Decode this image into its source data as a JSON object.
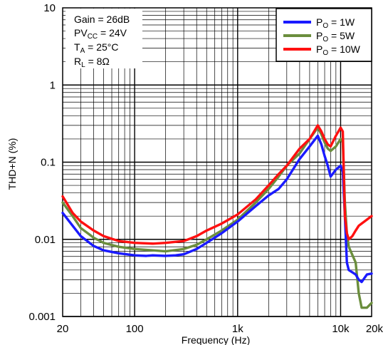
{
  "chart_data": {
    "type": "line",
    "xscale": "log",
    "yscale": "log",
    "xlim": [
      20,
      20000
    ],
    "ylim": [
      0.001,
      10
    ],
    "xlabel": "Frequency (Hz)",
    "ylabel": "THD+N (%)",
    "x_ticks": [
      {
        "value": 20,
        "label": "20"
      },
      {
        "value": 100,
        "label": "100"
      },
      {
        "value": 1000,
        "label": "1k"
      },
      {
        "value": 10000,
        "label": "10k"
      },
      {
        "value": 20000,
        "label": "20k"
      }
    ],
    "y_ticks": [
      {
        "value": 10,
        "label": "10"
      },
      {
        "value": 1,
        "label": "1"
      },
      {
        "value": 0.1,
        "label": "0.1"
      },
      {
        "value": 0.01,
        "label": "0.01"
      },
      {
        "value": 0.001,
        "label": "0.001"
      }
    ],
    "grid": true,
    "legend_position": "top-right",
    "annotation": {
      "gain": "Gain = 26dB",
      "pvcc_main": "PV",
      "pvcc_sub": "CC",
      "pvcc_value": " = 24V",
      "ta_main": "T",
      "ta_sub": "A",
      "ta_value": " = 25°C",
      "rl_main": "R",
      "rl_sub": "L",
      "rl_value": " = 8Ω"
    },
    "series": [
      {
        "name_main": "P",
        "name_sub": "O",
        "name_value": " = 1W",
        "color": "#1a1aff",
        "points": [
          [
            20,
            0.022
          ],
          [
            25,
            0.015
          ],
          [
            30,
            0.011
          ],
          [
            40,
            0.0082
          ],
          [
            50,
            0.0072
          ],
          [
            70,
            0.0066
          ],
          [
            100,
            0.0062
          ],
          [
            130,
            0.0061
          ],
          [
            150,
            0.0062
          ],
          [
            200,
            0.0061
          ],
          [
            250,
            0.0062
          ],
          [
            300,
            0.0064
          ],
          [
            400,
            0.0075
          ],
          [
            500,
            0.009
          ],
          [
            700,
            0.012
          ],
          [
            1000,
            0.017
          ],
          [
            1500,
            0.027
          ],
          [
            2000,
            0.037
          ],
          [
            2500,
            0.045
          ],
          [
            3000,
            0.06
          ],
          [
            4000,
            0.11
          ],
          [
            5000,
            0.16
          ],
          [
            6000,
            0.22
          ],
          [
            6500,
            0.17
          ],
          [
            7000,
            0.12
          ],
          [
            7500,
            0.09
          ],
          [
            8000,
            0.065
          ],
          [
            9000,
            0.08
          ],
          [
            10000,
            0.09
          ],
          [
            10500,
            0.075
          ],
          [
            11000,
            0.02
          ],
          [
            11500,
            0.005
          ],
          [
            12000,
            0.004
          ],
          [
            14000,
            0.0035
          ],
          [
            15000,
            0.003
          ],
          [
            16000,
            0.0028
          ],
          [
            18000,
            0.0035
          ],
          [
            20000,
            0.0036
          ]
        ]
      },
      {
        "name_main": "P",
        "name_sub": "O",
        "name_value": " = 5W",
        "color": "#6b8e3d",
        "points": [
          [
            20,
            0.03
          ],
          [
            25,
            0.02
          ],
          [
            30,
            0.014
          ],
          [
            40,
            0.0105
          ],
          [
            50,
            0.009
          ],
          [
            70,
            0.008
          ],
          [
            100,
            0.0075
          ],
          [
            150,
            0.0072
          ],
          [
            200,
            0.007
          ],
          [
            300,
            0.0075
          ],
          [
            400,
            0.0085
          ],
          [
            500,
            0.01
          ],
          [
            700,
            0.013
          ],
          [
            1000,
            0.018
          ],
          [
            1500,
            0.03
          ],
          [
            2000,
            0.045
          ],
          [
            2500,
            0.065
          ],
          [
            3000,
            0.09
          ],
          [
            4000,
            0.13
          ],
          [
            5000,
            0.2
          ],
          [
            6000,
            0.28
          ],
          [
            6500,
            0.23
          ],
          [
            7000,
            0.18
          ],
          [
            7500,
            0.15
          ],
          [
            8000,
            0.14
          ],
          [
            9000,
            0.16
          ],
          [
            10000,
            0.2
          ],
          [
            10500,
            0.18
          ],
          [
            11000,
            0.03
          ],
          [
            11500,
            0.012
          ],
          [
            12000,
            0.008
          ],
          [
            14000,
            0.005
          ],
          [
            15000,
            0.002
          ],
          [
            16000,
            0.0013
          ],
          [
            18000,
            0.0013
          ],
          [
            20000,
            0.0015
          ]
        ]
      },
      {
        "name_main": "P",
        "name_sub": "O",
        "name_value": " = 10W",
        "color": "#ff1010",
        "points": [
          [
            20,
            0.036
          ],
          [
            25,
            0.022
          ],
          [
            30,
            0.017
          ],
          [
            40,
            0.013
          ],
          [
            50,
            0.011
          ],
          [
            70,
            0.0095
          ],
          [
            100,
            0.009
          ],
          [
            150,
            0.0088
          ],
          [
            200,
            0.009
          ],
          [
            300,
            0.0095
          ],
          [
            400,
            0.011
          ],
          [
            500,
            0.013
          ],
          [
            700,
            0.016
          ],
          [
            1000,
            0.021
          ],
          [
            1500,
            0.033
          ],
          [
            2000,
            0.05
          ],
          [
            2500,
            0.07
          ],
          [
            3000,
            0.09
          ],
          [
            4000,
            0.15
          ],
          [
            5000,
            0.2
          ],
          [
            6000,
            0.3
          ],
          [
            6500,
            0.25
          ],
          [
            7000,
            0.2
          ],
          [
            7500,
            0.17
          ],
          [
            8000,
            0.16
          ],
          [
            9000,
            0.22
          ],
          [
            10000,
            0.28
          ],
          [
            10500,
            0.25
          ],
          [
            11000,
            0.02
          ],
          [
            11500,
            0.012
          ],
          [
            12000,
            0.01
          ],
          [
            13000,
            0.011
          ],
          [
            14000,
            0.013
          ],
          [
            15000,
            0.015
          ],
          [
            16000,
            0.016
          ],
          [
            18000,
            0.018
          ],
          [
            20000,
            0.02
          ]
        ]
      }
    ]
  }
}
